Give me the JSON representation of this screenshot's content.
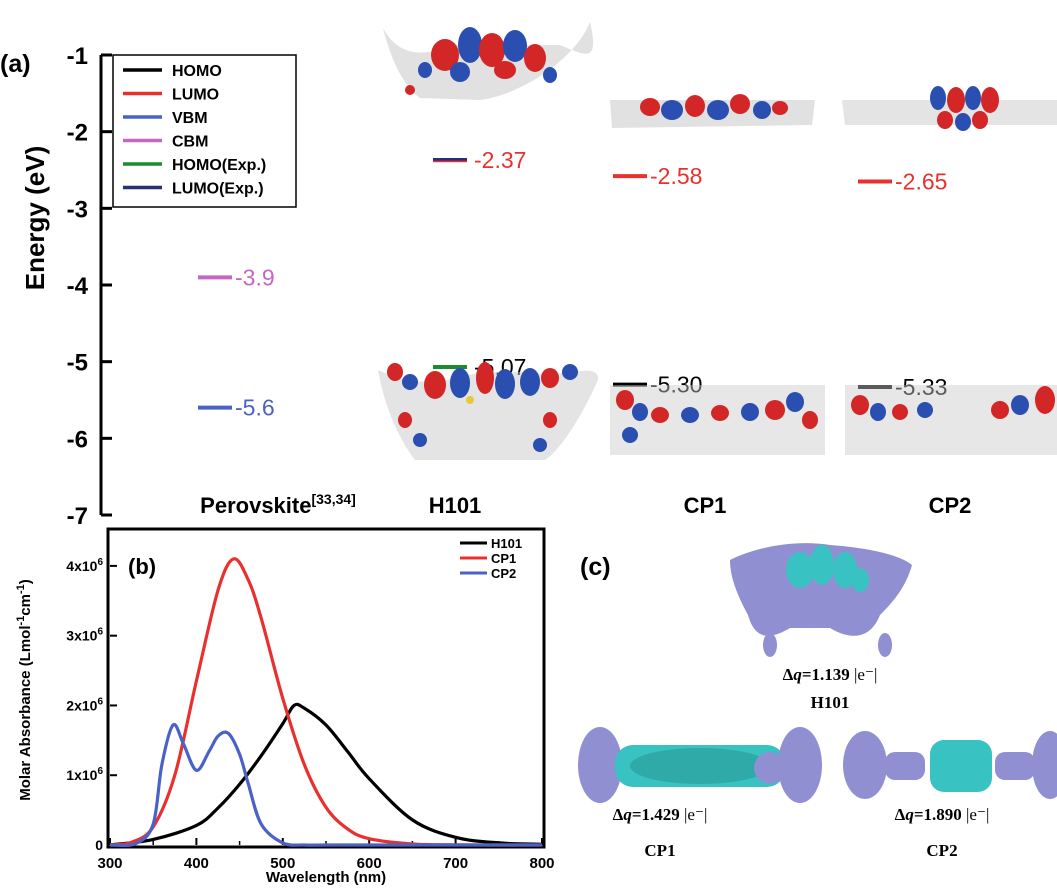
{
  "panel_a": {
    "label": "(a)",
    "ylabel": "Energy (eV)",
    "yticks": [
      "-1",
      "-2",
      "-3",
      "-4",
      "-5",
      "-6",
      "-7"
    ],
    "legend": [
      {
        "name": "HOMO",
        "color": "#000000"
      },
      {
        "name": "LUMO",
        "color": "#e8312e"
      },
      {
        "name": "VBM",
        "color": "#4a62c8"
      },
      {
        "name": "CBM",
        "color": "#c467c4"
      },
      {
        "name": "HOMO(Exp.)",
        "color": "#1a8c2a"
      },
      {
        "name": "LUMO(Exp.)",
        "color": "#26307a"
      }
    ],
    "columns": [
      {
        "name": "Perovskite",
        "sup": "[33,34]"
      },
      {
        "name": "H101",
        "sup": ""
      },
      {
        "name": "CP1",
        "sup": ""
      },
      {
        "name": "CP2",
        "sup": ""
      }
    ],
    "levels_text": [
      "-2.37",
      "-2.58",
      "-2.65",
      "-3.9",
      "-5.6",
      "-5.07",
      "-5.30",
      "-5.33"
    ]
  },
  "chart_data": [
    {
      "type": "bar",
      "title": "",
      "ylabel": "Energy (eV)",
      "ylim": [
        -7,
        -1
      ],
      "categories": [
        "Perovskite",
        "H101",
        "CP1",
        "CP2"
      ],
      "series": [
        {
          "name": "VBM",
          "values": [
            -5.6,
            null,
            null,
            null
          ]
        },
        {
          "name": "CBM",
          "values": [
            -3.9,
            null,
            null,
            null
          ]
        },
        {
          "name": "HOMO(Exp.)",
          "values": [
            null,
            -5.07,
            null,
            null
          ]
        },
        {
          "name": "LUMO(Exp.)",
          "values": [
            null,
            -2.37,
            null,
            null
          ]
        },
        {
          "name": "HOMO",
          "values": [
            null,
            -5.07,
            -5.3,
            -5.33
          ]
        },
        {
          "name": "LUMO",
          "values": [
            null,
            -2.37,
            -2.58,
            -2.65
          ]
        }
      ]
    },
    {
      "type": "line",
      "title": "",
      "xlabel": "Wavelength (nm)",
      "ylabel": "Molar Absorbance (Lmol-1cm-1)",
      "xlim": [
        300,
        800
      ],
      "ylim": [
        0,
        4500000
      ],
      "series": [
        {
          "name": "H101",
          "color": "#000000",
          "x": [
            300,
            350,
            400,
            425,
            450,
            475,
            500,
            513,
            525,
            550,
            575,
            600,
            650,
            700,
            750,
            800
          ],
          "y": [
            0,
            80000,
            280000,
            530000,
            870000,
            1280000,
            1740000,
            2000000,
            1960000,
            1720000,
            1340000,
            950000,
            360000,
            110000,
            30000,
            10000
          ]
        },
        {
          "name": "CP1",
          "color": "#e8312e",
          "x": [
            300,
            325,
            350,
            375,
            400,
            425,
            443,
            460,
            475,
            500,
            525,
            550,
            575,
            600,
            650,
            700,
            750,
            800
          ],
          "y": [
            0,
            40000,
            260000,
            1000000,
            2350000,
            3650000,
            4100000,
            3800000,
            3250000,
            2100000,
            1150000,
            540000,
            230000,
            90000,
            15000,
            3000,
            0,
            0
          ]
        },
        {
          "name": "CP2",
          "color": "#4a62c8",
          "x": [
            300,
            330,
            350,
            360,
            373,
            385,
            400,
            415,
            425,
            437,
            450,
            460,
            475,
            500,
            525,
            550,
            600,
            800
          ],
          "y": [
            0,
            20000,
            300000,
            1150000,
            1720000,
            1450000,
            1070000,
            1350000,
            1560000,
            1600000,
            1300000,
            880000,
            300000,
            30000,
            0,
            0,
            0,
            0
          ]
        }
      ],
      "x_ticks": [
        "300",
        "400",
        "500",
        "600",
        "700",
        "800"
      ],
      "y_ticks": [
        {
          "v": 0,
          "t": "0"
        },
        {
          "v": 1000000,
          "t": "1x10",
          "e": "6"
        },
        {
          "v": 2000000,
          "t": "2x10",
          "e": "6"
        },
        {
          "v": 3000000,
          "t": "3x10",
          "e": "6"
        },
        {
          "v": 4000000,
          "t": "4x10",
          "e": "6"
        }
      ]
    }
  ],
  "panel_b": {
    "label": "(b)",
    "ylabel_main": "Molar Absorbance (Lmol",
    "ylabel_sup1": "-1",
    "ylabel_mid": "cm",
    "ylabel_sup2": "-1",
    "ylabel_end": ")",
    "xlabel": "Wavelength (nm)"
  },
  "panel_c": {
    "label": "(c)",
    "items": [
      {
        "dq": "1.139",
        "unit": "|e⁻|",
        "name": "H101"
      },
      {
        "dq": "1.429",
        "unit": "|e⁻|",
        "name": "CP1"
      },
      {
        "dq": "1.890",
        "unit": "|e⁻|",
        "name": "CP2"
      }
    ]
  }
}
